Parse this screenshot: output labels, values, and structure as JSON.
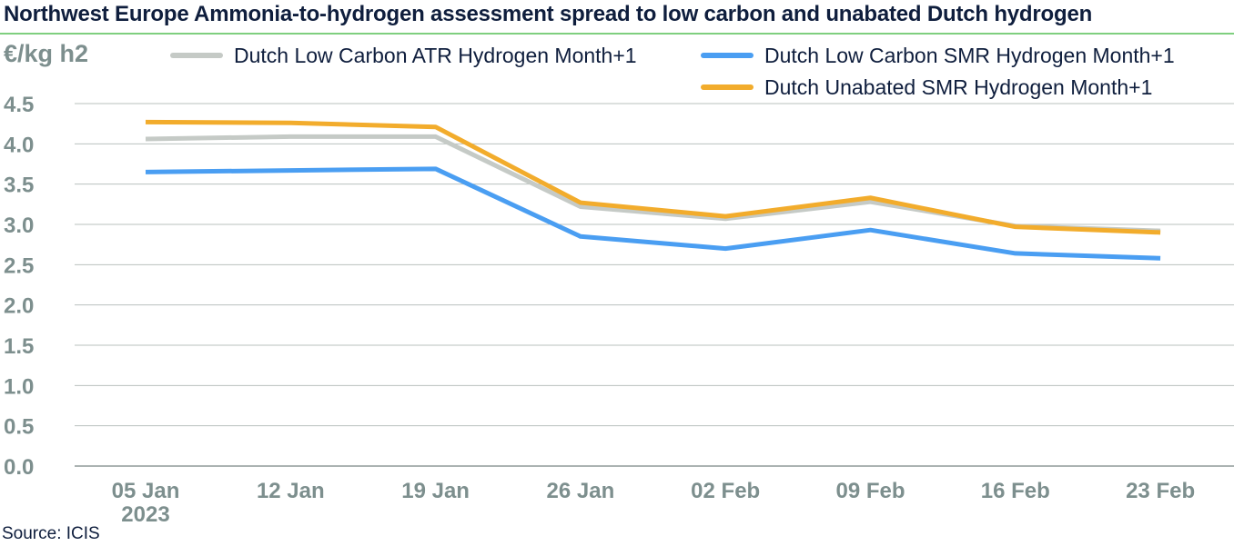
{
  "title": "Northwest Europe Ammonia-to-hydrogen assessment spread to low carbon and unabated Dutch hydrogen",
  "unit_label": "€/kg h2",
  "source": "Source: ICIS",
  "chart_data": {
    "type": "line",
    "title": "Northwest Europe Ammonia-to-hydrogen assessment spread to low carbon and unabated Dutch hydrogen",
    "ylabel": "€/kg h2",
    "xlabel": "",
    "ylim": [
      0,
      4.5
    ],
    "yticks": [
      "0.0",
      "0.5",
      "1.0",
      "1.5",
      "2.0",
      "2.5",
      "3.0",
      "3.5",
      "4.0",
      "4.5"
    ],
    "grid": true,
    "legend_position": "top-right",
    "categories": [
      "05 Jan 2023",
      "12 Jan",
      "19 Jan",
      "26 Jan",
      "02 Feb",
      "09 Feb",
      "16 Feb",
      "23 Feb"
    ],
    "category_labels": [
      [
        "05 Jan",
        "2023"
      ],
      [
        "12 Jan"
      ],
      [
        "19 Jan"
      ],
      [
        "26 Jan"
      ],
      [
        "02 Feb"
      ],
      [
        "09 Feb"
      ],
      [
        "16 Feb"
      ],
      [
        "23 Feb"
      ]
    ],
    "series": [
      {
        "name": "Dutch Low Carbon ATR Hydrogen Month+1",
        "color": "#c5cac6",
        "values": [
          4.06,
          4.09,
          4.09,
          3.22,
          3.07,
          3.28,
          2.98,
          2.92
        ]
      },
      {
        "name": "Dutch Low Carbon SMR Hydrogen Month+1",
        "color": "#4a9ef2",
        "values": [
          3.65,
          3.67,
          3.69,
          2.85,
          2.7,
          2.93,
          2.64,
          2.58
        ]
      },
      {
        "name": "Dutch Unabated SMR Hydrogen Month+1",
        "color": "#f2ac2c",
        "values": [
          4.27,
          4.26,
          4.21,
          3.27,
          3.1,
          3.33,
          2.97,
          2.9
        ]
      }
    ]
  }
}
